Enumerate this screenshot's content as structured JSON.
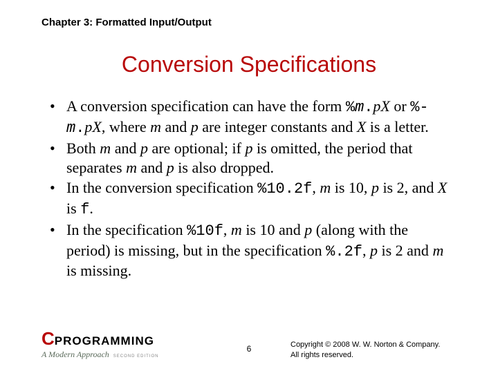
{
  "chapter": "Chapter 3: Formatted Input/Output",
  "title": "Conversion Specifications",
  "bullets": {
    "b1p1": "A conversion specification can have the form ",
    "b1c1": "%",
    "b1i1": "m",
    "b1c2": ".",
    "b1i2": "pX",
    "b1p2": " or ",
    "b1c3": "%-",
    "b1i3": "m",
    "b1c4": ".",
    "b1i4": "pX",
    "b1p3": ", where ",
    "b1i5": "m",
    "b1p4": " and ",
    "b1i6": "p",
    "b1p5": " are integer constants and ",
    "b1i7": "X",
    "b1p6": " is a letter.",
    "b2p1": "Both ",
    "b2i1": "m",
    "b2p2": " and ",
    "b2i2": "p",
    "b2p3": " are optional; if ",
    "b2i3": "p",
    "b2p4": " is omitted, the period that separates ",
    "b2i4": "m",
    "b2p5": " and ",
    "b2i5": "p",
    "b2p6": " is also dropped.",
    "b3p1": "In the conversion specification ",
    "b3c1": "%10.2f",
    "b3p2": ", ",
    "b3i1": "m",
    "b3p3": " is 10, ",
    "b3i2": "p",
    "b3p4": " is 2, and ",
    "b3i3": "X",
    "b3p5": " is ",
    "b3c2": "f",
    "b3p6": ".",
    "b4p1": "In the specification ",
    "b4c1": "%10f",
    "b4p2": ", ",
    "b4i1": "m",
    "b4p3": " is 10 and ",
    "b4i2": "p",
    "b4p4": " (along with the period) is missing, but in the specification ",
    "b4c2": "%.2f",
    "b4p5": ", ",
    "b4i3": "p",
    "b4p6": " is 2 and ",
    "b4i4": "m",
    "b4p7": " is missing."
  },
  "pagenum": "6",
  "copyright_l1": "Copyright © 2008 W. W. Norton & Company.",
  "copyright_l2": "All rights reserved.",
  "logo": {
    "c": "C",
    "prog": "PROGRAMMING",
    "sub": "A Modern Approach",
    "ed": "SECOND EDITION"
  },
  "colors": {
    "title": "#b80808",
    "text": "#000000",
    "background": "#ffffff"
  }
}
